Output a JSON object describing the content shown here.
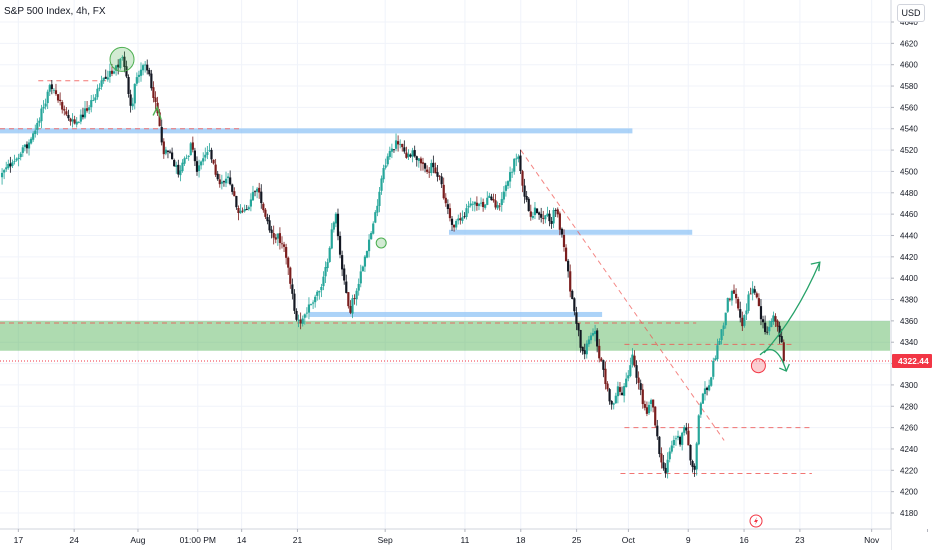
{
  "header": {
    "title": "S&P 500 Index, 4h, FX",
    "currency": "USD"
  },
  "chart_data": {
    "type": "candlestick",
    "y_axis": {
      "ticks": [
        4180,
        4200,
        4220,
        4240,
        4260,
        4280,
        4300,
        4320,
        4340,
        4360,
        4380,
        4400,
        4420,
        4440,
        4460,
        4480,
        4500,
        4520,
        4540,
        4560,
        4580,
        4600,
        4620,
        4640
      ],
      "range": [
        4168,
        4650
      ],
      "position": "right"
    },
    "x_axis": {
      "ticks": [
        {
          "label": "17",
          "t": 0
        },
        {
          "label": "24",
          "t": 7
        },
        {
          "label": "Aug",
          "t": 15
        },
        {
          "label": "01:00 PM",
          "t": 22.5
        },
        {
          "label": "14",
          "t": 28
        },
        {
          "label": "21",
          "t": 35
        },
        {
          "label": "Sep",
          "t": 46
        },
        {
          "label": "11",
          "t": 56
        },
        {
          "label": "18",
          "t": 63
        },
        {
          "label": "25",
          "t": 70
        },
        {
          "label": "Oct",
          "t": 76.5
        },
        {
          "label": "9",
          "t": 84
        },
        {
          "label": "16",
          "t": 91
        },
        {
          "label": "23",
          "t": 98
        },
        {
          "label": "Nov",
          "t": 107
        },
        {
          "label": "",
          "t": 114
        }
      ],
      "range": [
        -2.3,
        109.3
      ]
    },
    "price_path": [
      [
        -2.3,
        4495
      ],
      [
        -1,
        4507
      ],
      [
        0,
        4514
      ],
      [
        1,
        4524
      ],
      [
        2,
        4536
      ],
      [
        3,
        4560
      ],
      [
        4,
        4578
      ],
      [
        5,
        4567
      ],
      [
        6,
        4552
      ],
      [
        7,
        4546
      ],
      [
        8,
        4552
      ],
      [
        9,
        4563
      ],
      [
        10,
        4577
      ],
      [
        11,
        4588
      ],
      [
        12,
        4593
      ],
      [
        13,
        4605
      ],
      [
        13.6,
        4585
      ],
      [
        14.2,
        4560
      ],
      [
        14.7,
        4586
      ],
      [
        15.2,
        4595
      ],
      [
        15.8,
        4598
      ],
      [
        16.4,
        4590
      ],
      [
        17,
        4570
      ],
      [
        17.6,
        4548
      ],
      [
        18.2,
        4520
      ],
      [
        19,
        4515
      ],
      [
        20,
        4500
      ],
      [
        21,
        4512
      ],
      [
        21.8,
        4526
      ],
      [
        22.4,
        4500
      ],
      [
        23,
        4512
      ],
      [
        23.8,
        4520
      ],
      [
        24.6,
        4502
      ],
      [
        25.4,
        4488
      ],
      [
        26.2,
        4495
      ],
      [
        27,
        4478
      ],
      [
        27.8,
        4460
      ],
      [
        28.6,
        4462
      ],
      [
        29.4,
        4478
      ],
      [
        30.2,
        4482
      ],
      [
        31,
        4458
      ],
      [
        31.8,
        4440
      ],
      [
        32.6,
        4438
      ],
      [
        33.2,
        4432
      ],
      [
        33.8,
        4410
      ],
      [
        34.4,
        4380
      ],
      [
        35,
        4356
      ],
      [
        35.6,
        4363
      ],
      [
        36.2,
        4370
      ],
      [
        36.8,
        4378
      ],
      [
        37.4,
        4386
      ],
      [
        38,
        4390
      ],
      [
        38.6,
        4410
      ],
      [
        39.2,
        4440
      ],
      [
        39.8,
        4460
      ],
      [
        40.4,
        4420
      ],
      [
        41,
        4390
      ],
      [
        41.6,
        4370
      ],
      [
        42.2,
        4386
      ],
      [
        42.8,
        4400
      ],
      [
        43.4,
        4422
      ],
      [
        44,
        4436
      ],
      [
        44.6,
        4452
      ],
      [
        45.2,
        4480
      ],
      [
        45.8,
        4505
      ],
      [
        46.4,
        4515
      ],
      [
        47,
        4522
      ],
      [
        47.6,
        4528
      ],
      [
        48.2,
        4520
      ],
      [
        48.8,
        4514
      ],
      [
        49.4,
        4520
      ],
      [
        50,
        4512
      ],
      [
        50.6,
        4505
      ],
      [
        51.2,
        4498
      ],
      [
        51.8,
        4505
      ],
      [
        52.4,
        4500
      ],
      [
        53,
        4490
      ],
      [
        53.6,
        4470
      ],
      [
        54.2,
        4455
      ],
      [
        54.8,
        4450
      ],
      [
        55.4,
        4455
      ],
      [
        56,
        4460
      ],
      [
        56.6,
        4470
      ],
      [
        57.2,
        4472
      ],
      [
        57.8,
        4466
      ],
      [
        58.4,
        4470
      ],
      [
        59,
        4474
      ],
      [
        59.6,
        4472
      ],
      [
        60.2,
        4466
      ],
      [
        60.8,
        4480
      ],
      [
        61.4,
        4492
      ],
      [
        62,
        4505
      ],
      [
        62.6,
        4518
      ],
      [
        63.2,
        4490
      ],
      [
        63.8,
        4468
      ],
      [
        64.4,
        4458
      ],
      [
        65,
        4465
      ],
      [
        65.6,
        4455
      ],
      [
        66.2,
        4462
      ],
      [
        66.8,
        4452
      ],
      [
        67.4,
        4468
      ],
      [
        68,
        4445
      ],
      [
        68.6,
        4420
      ],
      [
        69.2,
        4390
      ],
      [
        69.8,
        4370
      ],
      [
        70.4,
        4340
      ],
      [
        71,
        4332
      ],
      [
        71.6,
        4348
      ],
      [
        72.2,
        4352
      ],
      [
        72.8,
        4330
      ],
      [
        73.4,
        4310
      ],
      [
        74,
        4290
      ],
      [
        74.6,
        4280
      ],
      [
        75.2,
        4300
      ],
      [
        75.8,
        4290
      ],
      [
        76.4,
        4310
      ],
      [
        77,
        4326
      ],
      [
        77.6,
        4308
      ],
      [
        78.2,
        4288
      ],
      [
        78.8,
        4270
      ],
      [
        79.4,
        4290
      ],
      [
        80,
        4255
      ],
      [
        80.6,
        4230
      ],
      [
        81.2,
        4220
      ],
      [
        81.8,
        4240
      ],
      [
        82.4,
        4252
      ],
      [
        83,
        4248
      ],
      [
        83.6,
        4262
      ],
      [
        84.2,
        4232
      ],
      [
        84.8,
        4220
      ],
      [
        85.4,
        4280
      ],
      [
        86,
        4292
      ],
      [
        86.6,
        4300
      ],
      [
        87.2,
        4322
      ],
      [
        87.8,
        4340
      ],
      [
        88.4,
        4356
      ],
      [
        89,
        4380
      ],
      [
        89.6,
        4388
      ],
      [
        90.2,
        4372
      ],
      [
        90.8,
        4356
      ],
      [
        91.4,
        4376
      ],
      [
        92,
        4395
      ],
      [
        92.6,
        4380
      ],
      [
        93.2,
        4360
      ],
      [
        93.8,
        4350
      ],
      [
        94.4,
        4364
      ],
      [
        95,
        4360
      ],
      [
        95.6,
        4340
      ],
      [
        96.2,
        4322
      ]
    ],
    "last_price": 4322.44,
    "last_price_label": "4322.44",
    "support_zone": {
      "from": 4332,
      "to": 4360,
      "color": "#4caf50"
    },
    "horizontal_levels": [
      {
        "y": 4538,
        "t_from": -2.3,
        "t_to": 77
      },
      {
        "y": 4443,
        "t_from": 54,
        "t_to": 84.5
      },
      {
        "y": 4366,
        "t_from": 36.5,
        "t_to": 73.2
      }
    ],
    "dashed_levels": [
      {
        "y": 4585,
        "t_from": 2.5,
        "t_to": 11
      },
      {
        "y": 4540,
        "t_from": -2.3,
        "t_to": 28
      },
      {
        "y": 4358,
        "t_from": -2.3,
        "t_to": 85
      },
      {
        "y": 4338,
        "t_from": 76,
        "t_to": 97
      },
      {
        "y": 4260,
        "t_from": 76,
        "t_to": 99.5
      },
      {
        "y": 4217,
        "t_from": 75.5,
        "t_to": 99.5
      }
    ],
    "trend_line": {
      "from": [
        63,
        4520
      ],
      "to": [
        88.5,
        4248
      ]
    },
    "projection": {
      "start": [
        93.5,
        4330
      ],
      "up_end": [
        100.5,
        4415
      ],
      "down_end": [
        96.3,
        4313
      ]
    },
    "circle_markers": [
      {
        "t": 13,
        "y": 4605,
        "kind": "top",
        "color": "#4caf50"
      },
      {
        "t": 92.8,
        "y": 4318,
        "kind": "current",
        "color": "#f23645"
      },
      {
        "t": 45.5,
        "y": 4433,
        "kind": "minor",
        "color": "#4caf50"
      }
    ],
    "arrow_markers": [
      {
        "t": 17.4,
        "y": 4560,
        "direction": "up",
        "color": "#4caf50"
      }
    ],
    "colors": {
      "candle_up": "#26a69a",
      "candle_down": "#131722",
      "candle_red": "#7a1d1d",
      "level_line": "#90c4f5",
      "dashed_line": "#ef5350",
      "price_tag": "#f23645",
      "grid": "#f0f3fa",
      "axis_text": "#131722",
      "projection": "#26a269"
    },
    "grid": true,
    "bottom_marker_icon": "lightning-icon"
  }
}
